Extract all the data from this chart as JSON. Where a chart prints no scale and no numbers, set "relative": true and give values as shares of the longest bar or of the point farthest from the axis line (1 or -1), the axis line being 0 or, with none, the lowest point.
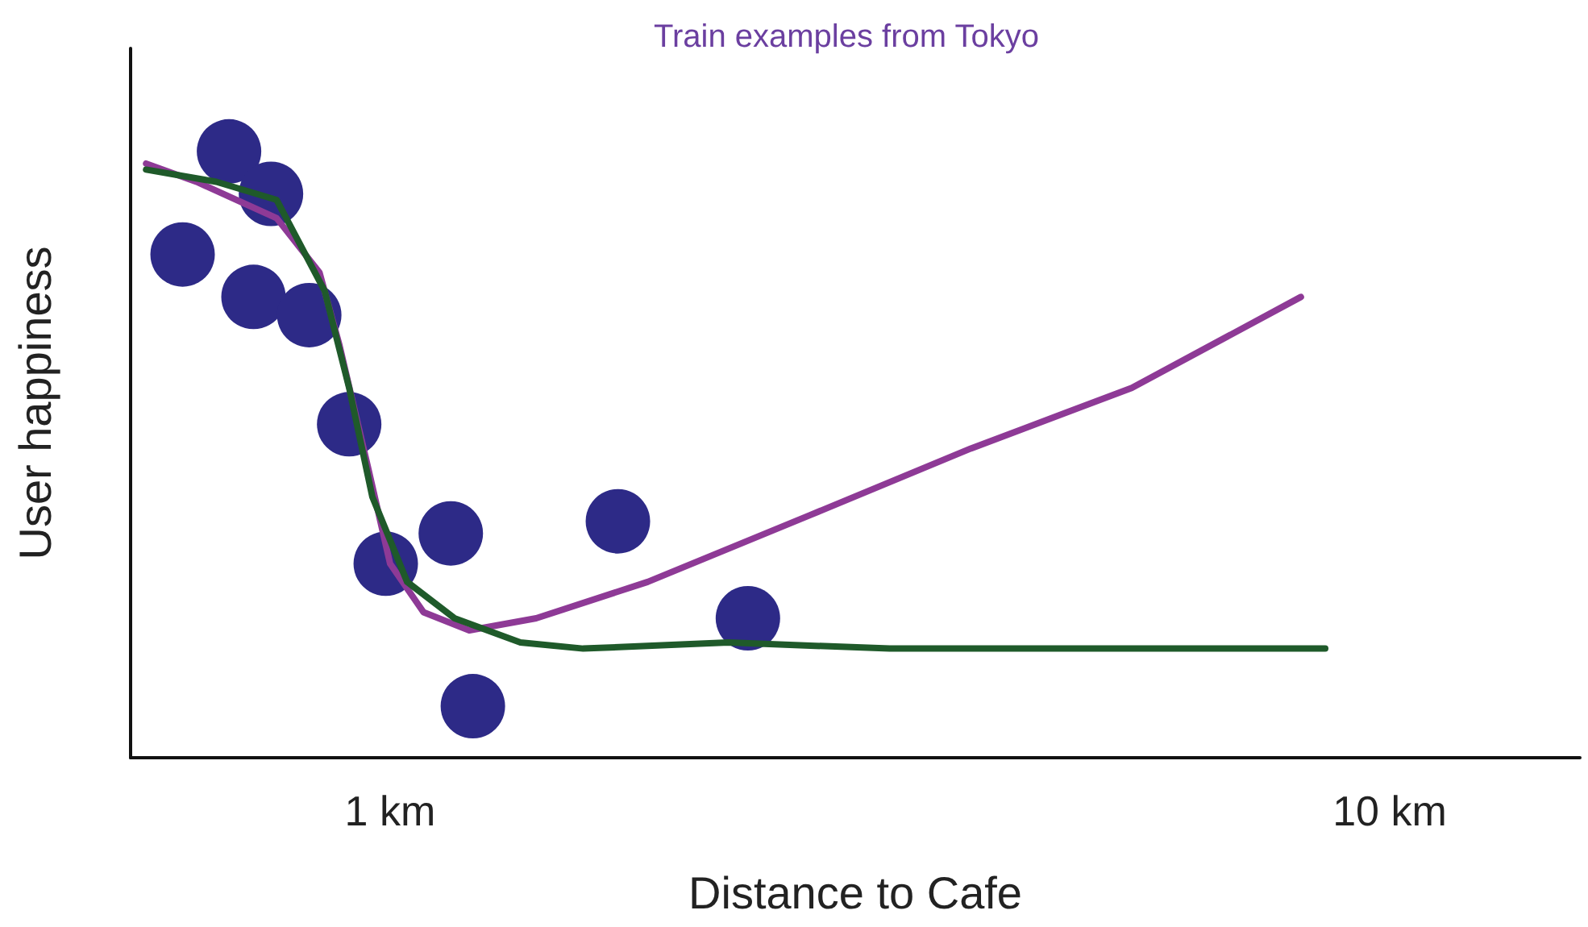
{
  "chart_data": {
    "type": "scatter",
    "title": "Train examples from Tokyo",
    "xlabel": "Distance to Cafe",
    "ylabel": "User happiness",
    "relative": true,
    "log": "x",
    "xlim": [
      0.55,
      15.5
    ],
    "xticks": [
      {
        "value": 1,
        "label": "1 km"
      },
      {
        "value": 10,
        "label": "10 km"
      }
    ],
    "tick_labels": "x",
    "grid": false,
    "series": [
      {
        "type": "line",
        "color": "#8e3a96",
        "marker": "none",
        "x": [
          0.57,
          0.64,
          0.77,
          0.85,
          0.89,
          0.95,
          1.0,
          1.08,
          1.2,
          1.4,
          1.81,
          2.63,
          3.81,
          5.52,
          8.15
        ],
        "values": [
          0.98,
          0.95,
          0.89,
          0.8,
          0.68,
          0.48,
          0.32,
          0.24,
          0.21,
          0.23,
          0.29,
          0.4,
          0.51,
          0.61,
          0.76
        ]
      },
      {
        "type": "line",
        "color": "#1f5a2a",
        "marker": "none",
        "x": [
          0.57,
          0.67,
          0.77,
          0.86,
          0.91,
          0.96,
          1.04,
          1.16,
          1.35,
          1.56,
          2.18,
          3.16,
          5.52,
          8.62
        ],
        "values": [
          0.97,
          0.95,
          0.92,
          0.77,
          0.61,
          0.43,
          0.29,
          0.23,
          0.19,
          0.18,
          0.19,
          0.18,
          0.18,
          0.18
        ]
      },
      {
        "color": "#2d2a87",
        "marker": "circle",
        "x": [
          0.62,
          0.69,
          0.76,
          0.73,
          0.83,
          0.91,
          0.99,
          1.15,
          1.21,
          1.69,
          2.28
        ],
        "values": [
          0.83,
          1.0,
          0.93,
          0.76,
          0.73,
          0.55,
          0.32,
          0.37,
          0.085,
          0.39,
          0.23
        ]
      }
    ]
  }
}
